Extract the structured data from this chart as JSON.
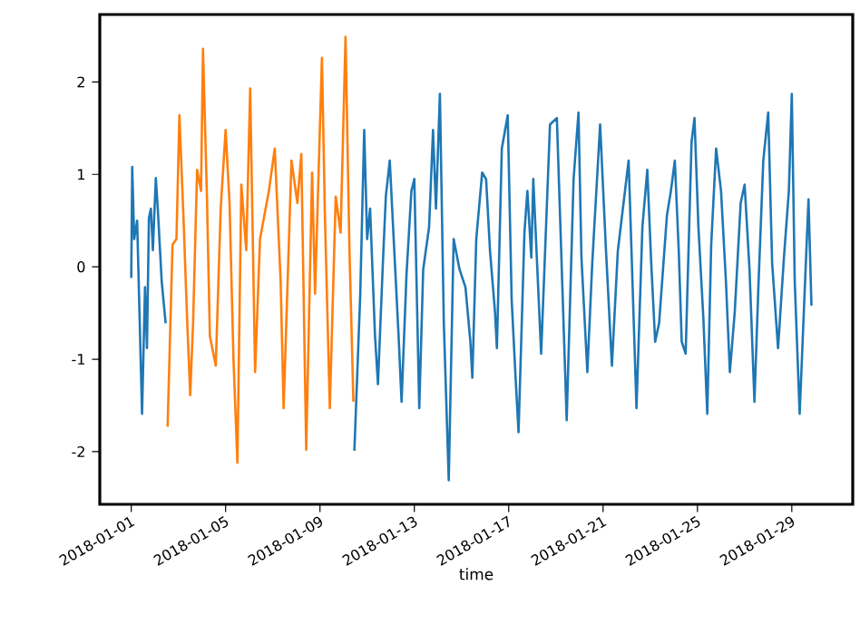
{
  "chart_data": {
    "type": "line",
    "xlabel": "time",
    "xlim": [
      "2017-12-30T16:00",
      "2018-01-31T14:00"
    ],
    "ylim": [
      -2.57,
      2.73
    ],
    "xticks": [
      "2018-01-01",
      "2018-01-05",
      "2018-01-09",
      "2018-01-13",
      "2018-01-17",
      "2018-01-21",
      "2018-01-25",
      "2018-01-29"
    ],
    "yticks": [
      -2,
      -1,
      0,
      1,
      2
    ],
    "marker": "none",
    "line_style": "solid",
    "series": [
      {
        "color": "#1f77b4",
        "x": [
          "2018-01-01T00:00",
          "2018-01-01T01:00",
          "2018-01-01T03:00",
          "2018-01-01T06:00",
          "2018-01-01T11:00",
          "2018-01-01T14:00",
          "2018-01-01T16:00",
          "2018-01-01T18:00",
          "2018-01-01T20:00",
          "2018-01-01T22:00",
          "2018-01-02T01:00",
          "2018-01-02T03:00",
          "2018-01-02T07:00",
          "2018-01-02T11:00",
          "2018-01-06T00:00",
          "2018-01-10T11:00",
          "2018-01-10T17:00",
          "2018-01-10T21:00",
          "2018-01-11T00:00",
          "2018-01-11T03:00",
          "2018-01-11T08:00",
          "2018-01-11T11:00",
          "2018-01-11T16:00",
          "2018-01-11T19:00",
          "2018-01-11T23:00",
          "2018-01-12T03:00",
          "2018-01-12T08:00",
          "2018-01-12T11:00",
          "2018-01-12T16:00",
          "2018-01-12T21:00",
          "2018-01-13T00:00",
          "2018-01-13T05:00",
          "2018-01-13T09:00",
          "2018-01-13T15:00",
          "2018-01-13T19:00",
          "2018-01-13T22:00",
          "2018-01-14T02:00",
          "2018-01-14T06:00",
          "2018-01-14T11:00",
          "2018-01-14T16:00",
          "2018-01-14T22:00",
          "2018-01-15T04:00",
          "2018-01-15T09:00",
          "2018-01-15T11:00",
          "2018-01-15T15:00",
          "2018-01-15T21:00",
          "2018-01-16T01:00",
          "2018-01-16T05:00",
          "2018-01-16T10:00",
          "2018-01-16T12:00",
          "2018-01-16T17:00",
          "2018-01-16T23:00",
          "2018-01-17T03:00",
          "2018-01-17T07:00",
          "2018-01-17T10:00",
          "2018-01-17T16:00",
          "2018-01-17T19:00",
          "2018-01-17T23:00",
          "2018-01-18T01:00",
          "2018-01-18T09:00",
          "2018-01-18T18:00",
          "2018-01-19T01:00",
          "2018-01-19T11:00",
          "2018-01-19T18:00",
          "2018-01-19T23:00",
          "2018-01-20T02:00",
          "2018-01-20T08:00",
          "2018-01-20T13:00",
          "2018-01-20T21:00",
          "2018-01-21T03:00",
          "2018-01-21T09:00",
          "2018-01-21T15:00",
          "2018-01-22T02:00",
          "2018-01-22T10:00",
          "2018-01-22T16:00",
          "2018-01-22T21:00",
          "2018-01-23T01:00",
          "2018-01-23T05:00",
          "2018-01-23T09:00",
          "2018-01-23T17:00",
          "2018-01-23T21:00",
          "2018-01-24T01:00",
          "2018-01-24T05:00",
          "2018-01-24T08:00",
          "2018-01-24T12:00",
          "2018-01-24T18:00",
          "2018-01-24T21:00",
          "2018-01-25T01:00",
          "2018-01-25T06:00",
          "2018-01-25T10:00",
          "2018-01-25T14:00",
          "2018-01-25T19:00",
          "2018-01-26T00:00",
          "2018-01-26T05:00",
          "2018-01-26T09:00",
          "2018-01-26T14:00",
          "2018-01-26T20:00",
          "2018-01-27T00:00",
          "2018-01-27T05:00",
          "2018-01-27T10:00",
          "2018-01-27T14:00",
          "2018-01-27T19:00",
          "2018-01-28T00:00",
          "2018-01-28T04:00",
          "2018-01-28T10:00",
          "2018-01-28T16:00",
          "2018-01-28T21:00",
          "2018-01-29T00:00",
          "2018-01-29T03:00",
          "2018-01-29T08:00",
          "2018-01-29T13:00",
          "2018-01-29T17:00",
          "2018-01-29T20:00"
        ],
        "values": [
          -0.12,
          1.08,
          0.3,
          0.5,
          -1.59,
          -0.22,
          -0.88,
          0.53,
          0.63,
          0.18,
          0.96,
          0.63,
          -0.16,
          -0.61,
          null,
          -1.99,
          -0.29,
          1.48,
          0.3,
          0.63,
          -0.75,
          -1.27,
          0.04,
          0.76,
          1.15,
          0.3,
          -0.75,
          -1.46,
          -0.09,
          0.82,
          0.95,
          -1.53,
          -0.03,
          0.43,
          1.48,
          0.63,
          1.87,
          -0.61,
          -2.31,
          0.3,
          -0.03,
          -0.22,
          -0.81,
          -1.2,
          0.3,
          1.02,
          0.95,
          0.17,
          -0.48,
          -0.88,
          1.28,
          1.64,
          -0.35,
          -1.2,
          -1.79,
          0.37,
          0.82,
          0.1,
          0.95,
          -0.94,
          1.54,
          1.61,
          -1.66,
          0.95,
          1.67,
          0.1,
          -1.14,
          0.04,
          1.54,
          0.17,
          -1.07,
          0.17,
          1.15,
          -1.53,
          0.43,
          1.05,
          0.04,
          -0.81,
          -0.61,
          0.56,
          0.82,
          1.15,
          0.17,
          -0.81,
          -0.94,
          1.35,
          1.61,
          0.43,
          -0.55,
          -1.59,
          0.24,
          1.28,
          0.82,
          -0.16,
          -1.14,
          -0.48,
          0.69,
          0.89,
          -0.03,
          -1.46,
          -0.22,
          1.15,
          1.67,
          0.04,
          -0.88,
          0.1,
          0.82,
          1.87,
          -0.16,
          -1.59,
          -0.29,
          0.73,
          -0.42
        ]
      },
      {
        "color": "#ff7f0e",
        "x": [
          "2018-01-02T13:00",
          "2018-01-02T18:00",
          "2018-01-02T22:00",
          "2018-01-03T01:00",
          "2018-01-03T05:00",
          "2018-01-03T09:00",
          "2018-01-03T12:00",
          "2018-01-03T15:00",
          "2018-01-03T19:00",
          "2018-01-03T23:00",
          "2018-01-04T01:00",
          "2018-01-04T05:00",
          "2018-01-04T08:00",
          "2018-01-04T14:00",
          "2018-01-04T19:00",
          "2018-01-05T00:00",
          "2018-01-05T04:00",
          "2018-01-05T08:00",
          "2018-01-05T12:00",
          "2018-01-05T16:00",
          "2018-01-05T21:00",
          "2018-01-06T01:00",
          "2018-01-06T06:00",
          "2018-01-06T11:00",
          "2018-01-06T20:00",
          "2018-01-07T02:00",
          "2018-01-07T08:00",
          "2018-01-07T11:00",
          "2018-01-07T19:00",
          "2018-01-08T01:00",
          "2018-01-08T05:00",
          "2018-01-08T10:00",
          "2018-01-08T16:00",
          "2018-01-08T19:00",
          "2018-01-09T02:00",
          "2018-01-09T05:00",
          "2018-01-09T10:00",
          "2018-01-09T16:00",
          "2018-01-09T21:00",
          "2018-01-10T02:00",
          "2018-01-10T06:00",
          "2018-01-10T10:00"
        ],
        "values": [
          -1.73,
          0.24,
          0.3,
          1.64,
          0.57,
          -0.61,
          -1.39,
          -0.58,
          1.05,
          0.82,
          2.36,
          0.76,
          -0.75,
          -1.07,
          0.63,
          1.48,
          0.69,
          -1.0,
          -2.12,
          0.89,
          0.18,
          1.93,
          -1.14,
          0.3,
          0.82,
          1.28,
          -0.16,
          -1.53,
          1.15,
          0.69,
          1.22,
          -1.98,
          1.02,
          -0.29,
          2.26,
          0.57,
          -1.53,
          0.76,
          0.37,
          2.49,
          0.18,
          -1.46
        ]
      }
    ]
  }
}
